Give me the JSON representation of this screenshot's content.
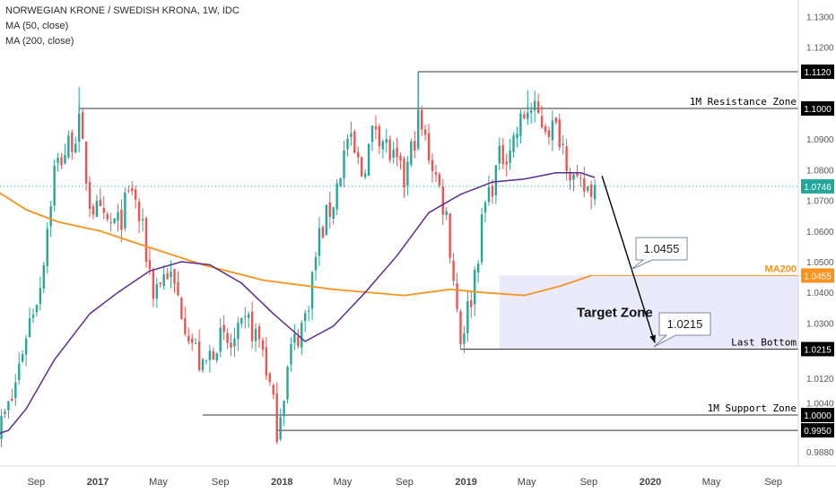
{
  "header": {
    "title": "NORWEGIAN KRONE / SWEDISH KRONA, 1W, IDC",
    "indicators": [
      "MA (50, close)",
      "MA (200, close)"
    ]
  },
  "colors": {
    "up": "#26a69a",
    "down": "#ef5350",
    "ma50": "#5b2c91",
    "ma200": "#f7931e",
    "zone": "#e8e8fb",
    "current": "#26a69a",
    "arrow": "#000000"
  },
  "chart_data": {
    "type": "candlestick",
    "symbol": "NOK/SEK",
    "interval": "1W",
    "y_ticks": [
      "1.1300",
      "1.1200",
      "1.1120",
      "1.1000",
      "1.0900",
      "1.0800",
      "1.0746",
      "1.0700",
      "1.0600",
      "1.0500",
      "1.0455",
      "1.0400",
      "1.0300",
      "1.0215",
      "1.0120",
      "1.0040",
      "1.0000",
      "0.9950",
      "0.9880"
    ],
    "x_ticks": [
      "Sep",
      "2017",
      "May",
      "Sep",
      "2018",
      "May",
      "Sep",
      "2019",
      "May",
      "Sep",
      "2020",
      "May",
      "Sep"
    ],
    "current_price": "1.0746",
    "price_path": [
      [
        "2016-06-10",
        0.992
      ],
      [
        "2016-07-15",
        1.005
      ],
      [
        "2016-08-12",
        1.027
      ],
      [
        "2016-09-09",
        1.043
      ],
      [
        "2016-10-07",
        1.08
      ],
      [
        "2016-11-04",
        1.088
      ],
      [
        "2016-11-25",
        1.094
      ],
      [
        "2016-12-16",
        1.07
      ],
      [
        "2017-01-13",
        1.062
      ],
      [
        "2017-02-10",
        1.062
      ],
      [
        "2017-03-10",
        1.074
      ],
      [
        "2017-03-31",
        1.059
      ],
      [
        "2017-04-21",
        1.041
      ],
      [
        "2017-05-19",
        1.047
      ],
      [
        "2017-06-16",
        1.035
      ],
      [
        "2017-07-07",
        1.024
      ],
      [
        "2017-07-28",
        1.014
      ],
      [
        "2017-08-25",
        1.025
      ],
      [
        "2017-09-22",
        1.022
      ],
      [
        "2017-10-27",
        1.03
      ],
      [
        "2017-11-24",
        1.022
      ],
      [
        "2017-12-22",
        0.996
      ],
      [
        "2018-01-19",
        1.021
      ],
      [
        "2018-02-16",
        1.032
      ],
      [
        "2018-03-16",
        1.058
      ],
      [
        "2018-04-13",
        1.07
      ],
      [
        "2018-05-11",
        1.09
      ],
      [
        "2018-06-08",
        1.079
      ],
      [
        "2018-07-06",
        1.095
      ],
      [
        "2018-08-03",
        1.085
      ],
      [
        "2018-08-31",
        1.076
      ],
      [
        "2018-09-28",
        1.096
      ],
      [
        "2018-10-26",
        1.082
      ],
      [
        "2018-11-23",
        1.065
      ],
      [
        "2018-12-21",
        1.025
      ],
      [
        "2019-01-11",
        1.039
      ],
      [
        "2019-02-08",
        1.069
      ],
      [
        "2019-03-08",
        1.083
      ],
      [
        "2019-04-05",
        1.09
      ],
      [
        "2019-05-03",
        1.1
      ],
      [
        "2019-06-07",
        1.095
      ],
      [
        "2019-07-05",
        1.092
      ],
      [
        "2019-08-09",
        1.073
      ],
      [
        "2019-09-13",
        1.0746
      ]
    ],
    "ma50": [
      [
        "2016-06-03",
        0.993
      ],
      [
        "2016-07-08",
        0.995
      ],
      [
        "2016-08-12",
        1.002
      ],
      [
        "2016-10-07",
        1.018
      ],
      [
        "2016-12-16",
        1.033
      ],
      [
        "2017-02-10",
        1.04
      ],
      [
        "2017-04-14",
        1.047
      ],
      [
        "2017-06-16",
        1.05
      ],
      [
        "2017-08-11",
        1.049
      ],
      [
        "2017-10-13",
        1.043
      ],
      [
        "2017-12-15",
        1.033
      ],
      [
        "2018-02-16",
        1.024
      ],
      [
        "2018-04-13",
        1.029
      ],
      [
        "2018-06-15",
        1.04
      ],
      [
        "2018-08-17",
        1.052
      ],
      [
        "2018-10-19",
        1.066
      ],
      [
        "2018-12-21",
        1.072
      ],
      [
        "2019-02-22",
        1.076
      ],
      [
        "2019-04-26",
        1.077
      ],
      [
        "2019-06-28",
        1.079
      ],
      [
        "2019-08-16",
        1.079
      ],
      [
        "2019-09-13",
        1.0775
      ]
    ],
    "ma200": [
      [
        "2016-05-27",
        1.075
      ],
      [
        "2016-08-12",
        1.067
      ],
      [
        "2016-10-14",
        1.063
      ],
      [
        "2017-01-06",
        1.06
      ],
      [
        "2017-04-07",
        1.055
      ],
      [
        "2017-07-28",
        1.049
      ],
      [
        "2017-11-24",
        1.044
      ],
      [
        "2018-04-13",
        1.041
      ],
      [
        "2018-08-31",
        1.039
      ],
      [
        "2018-11-30",
        1.041
      ],
      [
        "2019-02-01",
        1.04
      ],
      [
        "2019-04-26",
        1.039
      ],
      [
        "2019-07-05",
        1.042
      ],
      [
        "2019-09-06",
        1.0455
      ]
    ],
    "levels": [
      {
        "name": "1M Resistance Zone",
        "value": "1.1000",
        "start": "2016-11-25"
      },
      {
        "name": "",
        "value": "1.1120",
        "start": "2018-09-28"
      },
      {
        "name": "Last Bottom",
        "value": "1.0215",
        "start": "2018-12-21"
      },
      {
        "name": "1M Support Zone",
        "value": "1.0000",
        "start": "2017-07-28"
      },
      {
        "name": "",
        "value": "0.9950",
        "start": "2017-12-22"
      }
    ],
    "ma200_label": "MA200",
    "ma200_value": "1.0455",
    "target_zone": {
      "label": "Target Zone",
      "low": "1.0215",
      "high": "1.0455",
      "start": "2019-03-08",
      "end": "2020-12-31"
    },
    "projection": {
      "from": [
        "2019-09-13",
        "1.0780"
      ],
      "to": [
        "2020-01-10",
        "1.0215"
      ]
    },
    "callouts": [
      "1.0455",
      "1.0215"
    ]
  }
}
